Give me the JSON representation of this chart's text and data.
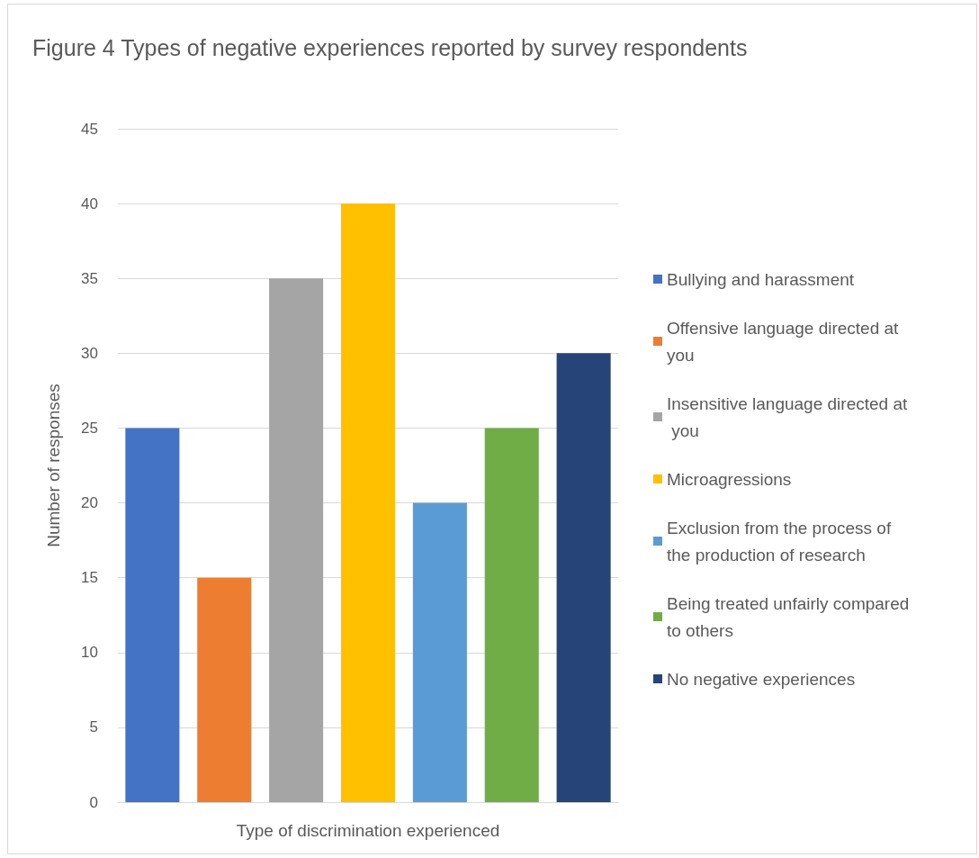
{
  "chart_data": {
    "type": "bar",
    "title": "Figure 4 Types of negative experiences reported by survey respondents",
    "xlabel": "Type of discrimination experienced",
    "ylabel": "Number of responses",
    "categories": [
      null
    ],
    "series": [
      {
        "name": "Bullying and harassment",
        "color": "#4472c4",
        "values": [
          25
        ]
      },
      {
        "name": "Offensive language directed at you",
        "color": "#ed7d31",
        "values": [
          15
        ]
      },
      {
        "name": "Insensitive language directed at you",
        "color": "#a5a5a5",
        "values": [
          35
        ]
      },
      {
        "name": "Microagressions",
        "color": "#ffc000",
        "values": [
          40
        ]
      },
      {
        "name": "Exclusion from the process of the production of research",
        "color": "#5b9bd5",
        "values": [
          20
        ]
      },
      {
        "name": "Being treated unfairly compared to others",
        "color": "#70ad47",
        "values": [
          25
        ]
      },
      {
        "name": "No negative experiences",
        "color": "#264478",
        "values": [
          30
        ]
      }
    ],
    "ylim": [
      0,
      45
    ],
    "yticks": [
      0,
      5,
      10,
      15,
      20,
      25,
      30,
      35,
      40,
      45
    ],
    "grid": "y",
    "legend": "right"
  }
}
